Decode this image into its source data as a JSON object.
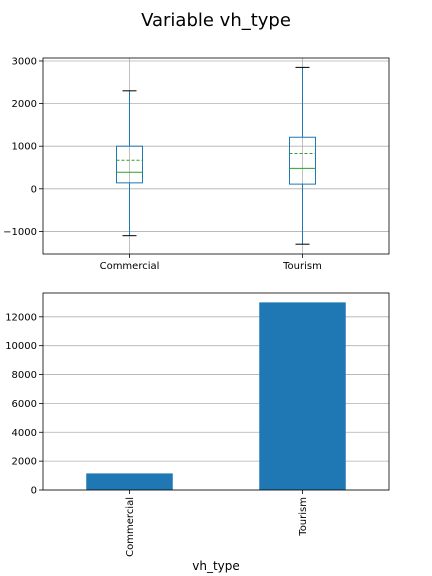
{
  "figure": {
    "title": "Variable vh_type"
  },
  "chart_data": [
    {
      "type": "box",
      "categories": [
        "Commercial",
        "Tourism"
      ],
      "boxes": [
        {
          "category": "Commercial",
          "whisker_low": -1100,
          "q1": 140,
          "median": 390,
          "mean": 670,
          "q3": 1000,
          "whisker_high": 2300
        },
        {
          "category": "Tourism",
          "whisker_low": -1300,
          "q1": 110,
          "median": 480,
          "mean": 830,
          "q3": 1210,
          "whisker_high": 2850
        }
      ],
      "yticks": [
        -1000,
        0,
        1000,
        2000,
        3000
      ],
      "ytick_labels": [
        "−1000",
        "0",
        "1000",
        "2000",
        "3000"
      ],
      "ylim": [
        -1530,
        3070
      ],
      "grid": true,
      "colors": {
        "box": "#1f77b4",
        "median": "#2ca02c",
        "mean": "#2ca02c",
        "whisker_cap": "#000000",
        "grid": "#b0b0b0"
      }
    },
    {
      "type": "bar",
      "categories": [
        "Commercial",
        "Tourism"
      ],
      "values": [
        1150,
        13000
      ],
      "xlabel": "vh_type",
      "yticks": [
        0,
        2000,
        4000,
        6000,
        8000,
        10000,
        12000
      ],
      "ytick_labels": [
        "0",
        "2000",
        "4000",
        "6000",
        "8000",
        "10000",
        "12000"
      ],
      "ylim": [
        0,
        13650
      ],
      "grid": true,
      "colors": {
        "bar": "#1f77b4",
        "grid": "#b0b0b0"
      }
    }
  ]
}
